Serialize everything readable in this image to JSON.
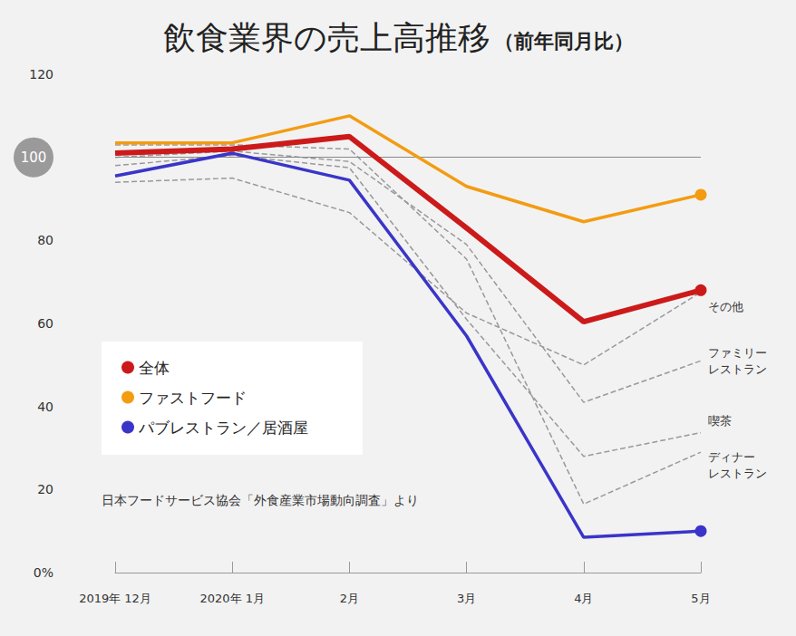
{
  "chart_data": {
    "type": "line",
    "title": "飲食業界の売上高推移",
    "subtitle": "（前年同月比）",
    "categories": [
      "2019年 12月",
      "2020年 1月",
      "2月",
      "3月",
      "4月",
      "5月"
    ],
    "ylim": [
      0,
      120
    ],
    "yticks": [
      {
        "value": 0,
        "label": "0%"
      },
      20,
      40,
      60,
      80,
      100,
      120
    ],
    "grid": false,
    "reference_line": 100,
    "legend": "lower left",
    "annotations": [
      "日本フードサービス協会「外食産業市場動向調査」より"
    ],
    "series": [
      {
        "name": "全体",
        "color": "#cc1a1a",
        "marker": "circle",
        "line_style": "solid",
        "values": [
          101,
          102,
          105,
          83,
          60.4,
          68
        ]
      },
      {
        "name": "ファストフード",
        "color": "#f39c12",
        "marker": "circle",
        "line_style": "solid",
        "values": [
          103.5,
          103.5,
          110,
          93,
          84.5,
          91
        ]
      },
      {
        "name": "パブレストラン／居酒屋",
        "color": "#3a35c8",
        "marker": "circle",
        "line_style": "solid",
        "values": [
          95.5,
          101,
          94.5,
          57,
          8.5,
          10
        ]
      },
      {
        "name": "その他",
        "color": "#999999",
        "line_style": "dashed",
        "values": [
          94,
          95,
          86.7,
          62.5,
          50,
          67.5
        ]
      },
      {
        "name": "ファミリー\nレストラン",
        "color": "#999999",
        "line_style": "dashed",
        "values": [
          100,
          101.5,
          99,
          79,
          41,
          51
        ]
      },
      {
        "name": "喫茶",
        "color": "#999999",
        "line_style": "dashed",
        "values": [
          98,
          100.5,
          97.5,
          61,
          28,
          33.7
        ]
      },
      {
        "name": "ディナー\nレストラン",
        "color": "#999999",
        "line_style": "dashed",
        "values": [
          103,
          103,
          102,
          75.5,
          16.5,
          29
        ]
      }
    ]
  }
}
